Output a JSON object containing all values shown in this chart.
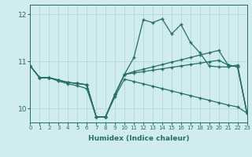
{
  "xlabel": "Humidex (Indice chaleur)",
  "background_color": "#d0ecee",
  "line_color": "#256e6a",
  "grid_color": "#a8d4d6",
  "xlim": [
    0,
    23
  ],
  "ylim": [
    9.7,
    12.2
  ],
  "yticks": [
    10,
    11,
    12
  ],
  "xticks": [
    0,
    1,
    2,
    3,
    4,
    5,
    6,
    7,
    8,
    9,
    10,
    11,
    12,
    13,
    14,
    15,
    16,
    17,
    18,
    19,
    20,
    21,
    22,
    23
  ],
  "series1_jagged": [
    10.9,
    10.65,
    10.65,
    10.6,
    10.55,
    10.53,
    10.5,
    9.82,
    9.82,
    10.3,
    10.72,
    11.08,
    11.88,
    11.82,
    11.9,
    11.58,
    11.78,
    11.4,
    11.18,
    10.9,
    10.88,
    10.88,
    10.92,
    9.9
  ],
  "series2_rising": [
    10.9,
    10.65,
    10.65,
    10.6,
    10.55,
    10.53,
    10.5,
    9.82,
    9.82,
    10.3,
    10.72,
    10.78,
    10.83,
    10.88,
    10.93,
    10.98,
    11.03,
    11.08,
    11.13,
    11.18,
    11.23,
    10.92,
    10.88,
    9.9
  ],
  "series3_flat": [
    10.9,
    10.65,
    10.65,
    10.6,
    10.55,
    10.53,
    10.5,
    9.82,
    9.82,
    10.3,
    10.72,
    10.75,
    10.78,
    10.81,
    10.84,
    10.87,
    10.9,
    10.93,
    10.96,
    10.99,
    11.02,
    10.92,
    10.88,
    9.9
  ],
  "series4_declining": [
    10.9,
    10.65,
    10.65,
    10.58,
    10.52,
    10.48,
    10.42,
    9.82,
    9.82,
    10.25,
    10.62,
    10.57,
    10.52,
    10.47,
    10.42,
    10.37,
    10.32,
    10.27,
    10.22,
    10.17,
    10.12,
    10.07,
    10.03,
    9.9
  ]
}
